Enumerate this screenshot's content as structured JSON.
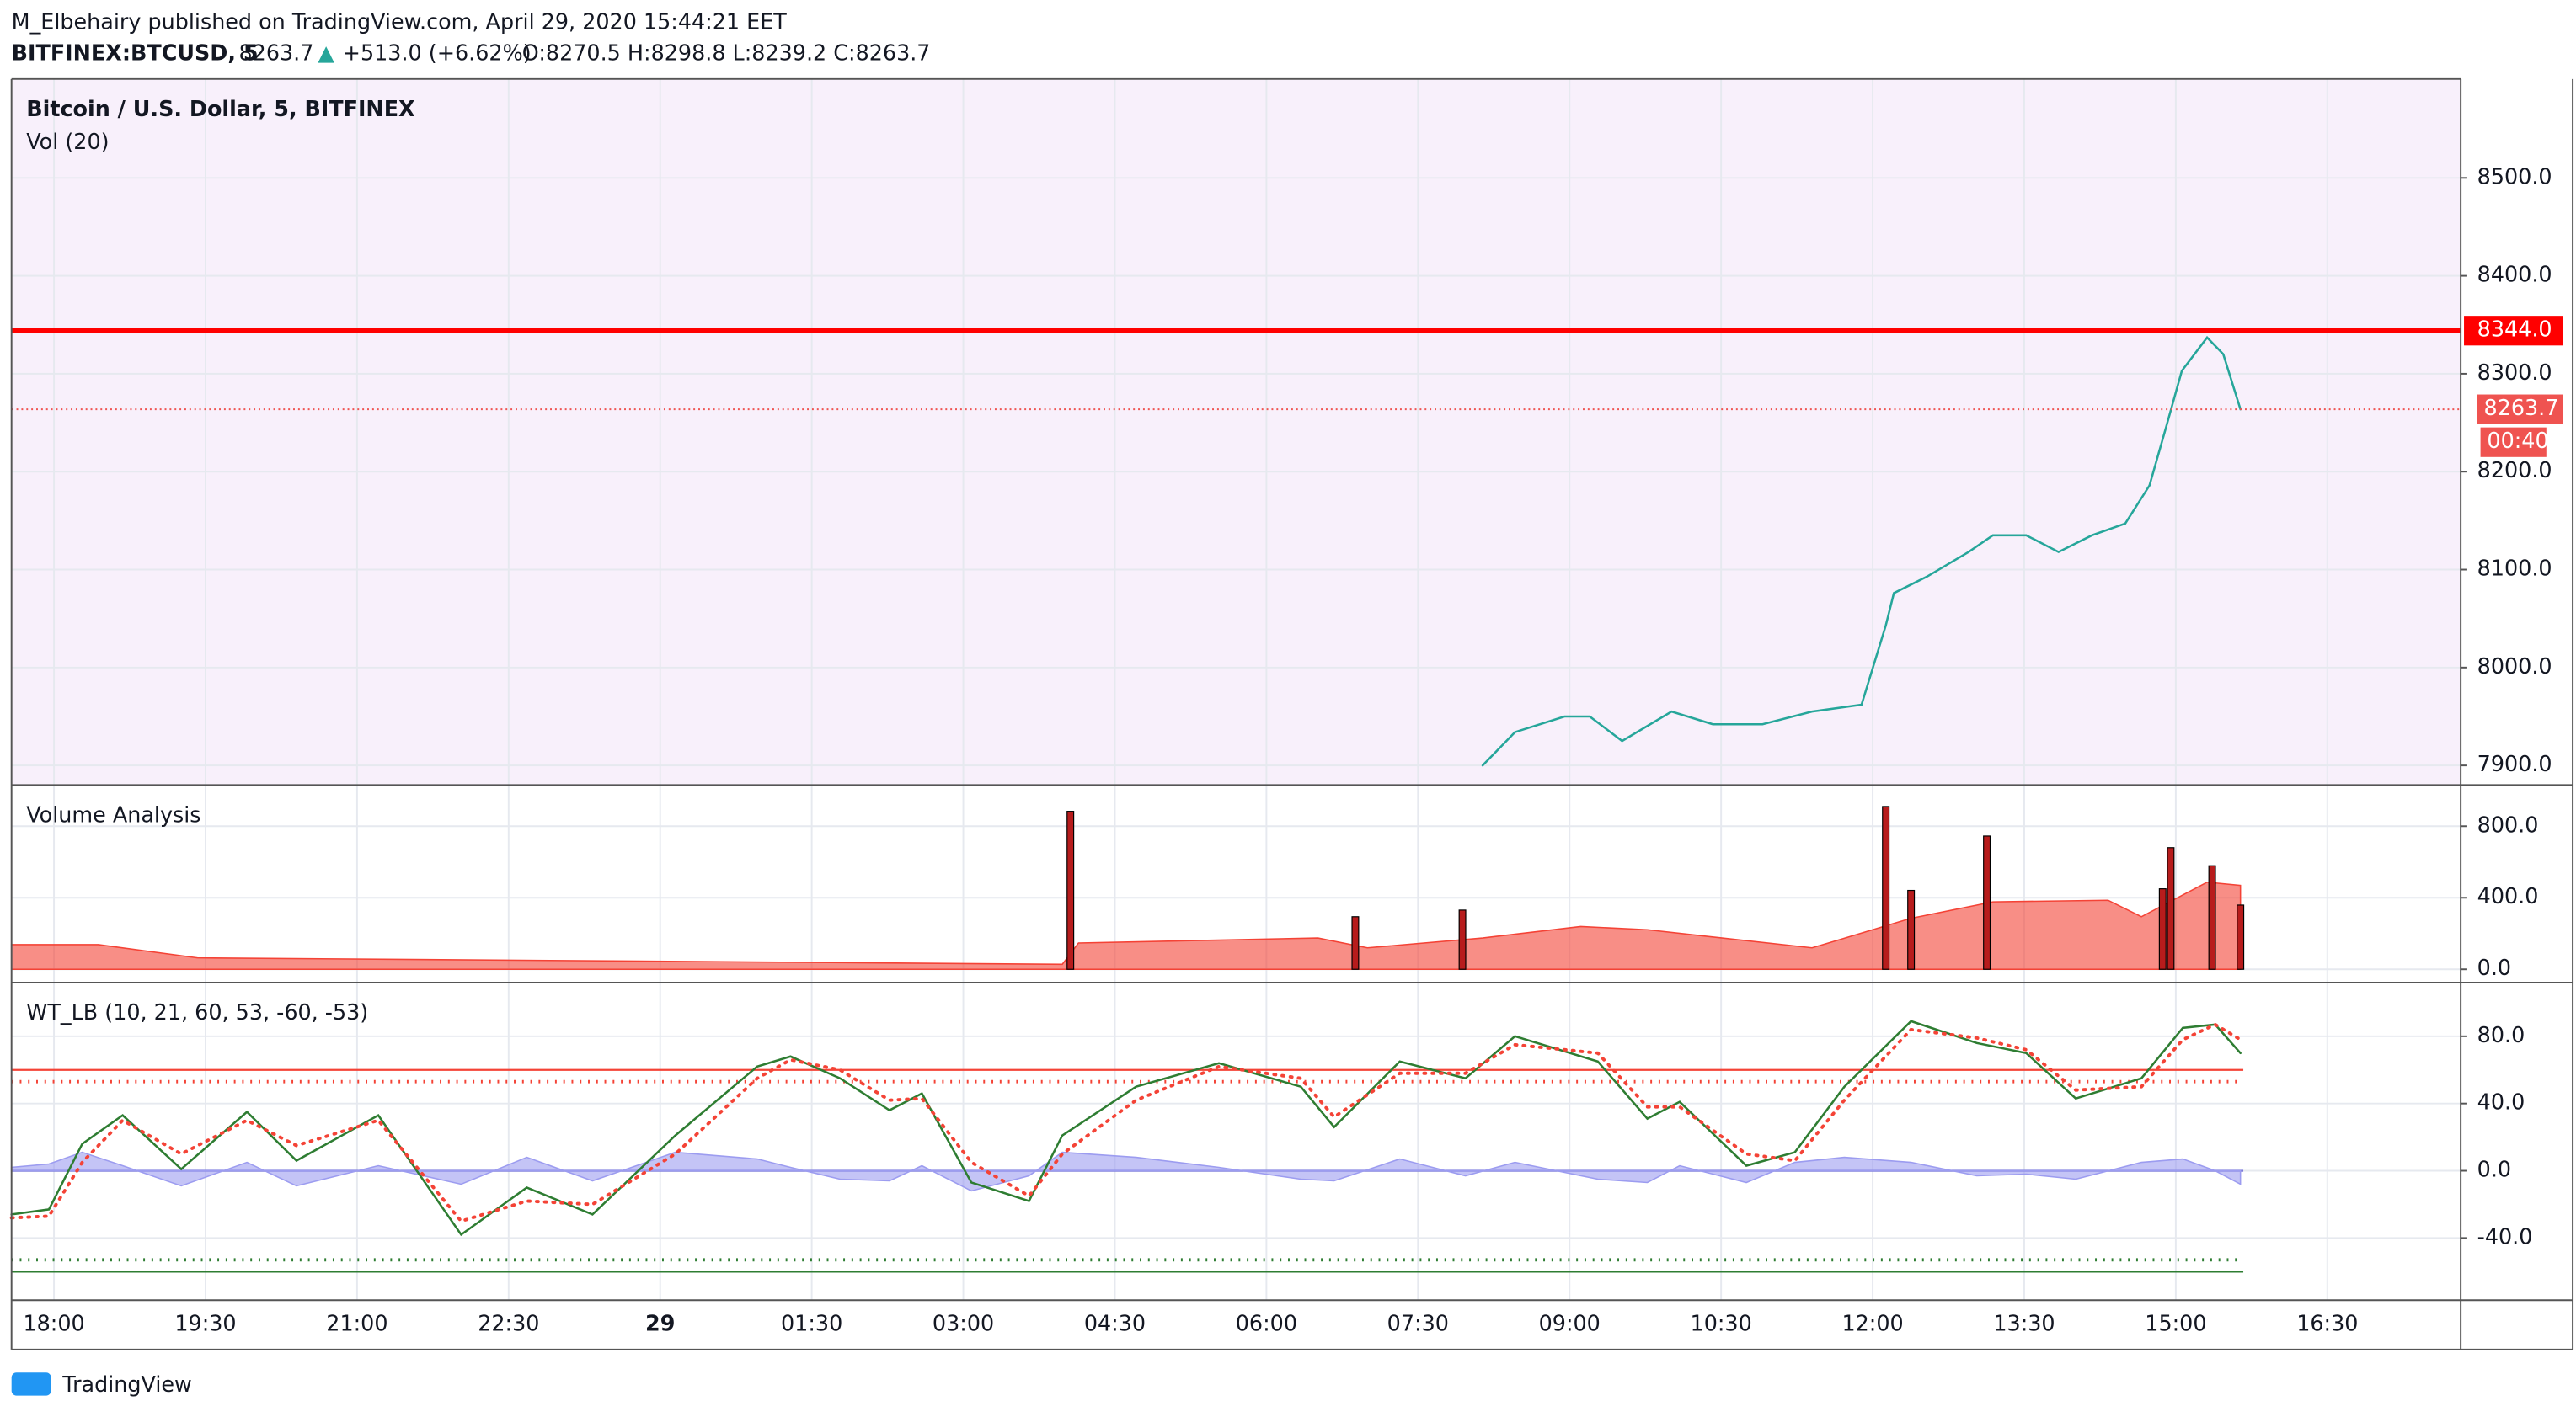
{
  "header": {
    "line1": "M_Elbehairy published on TradingView.com, April 29, 2020 15:44:21 EET",
    "symbol": "BITFINEX:BTCUSD, 5",
    "price": "8263.7",
    "arrow": "▲",
    "change": "+513.0 (+6.62%)",
    "ohlc": "O:8270.5 H:8298.8 L:8239.2 C:8263.7"
  },
  "footer": {
    "logo": "TradingView"
  },
  "chart_data": [
    {
      "type": "line",
      "title": "Bitcoin / U.S. Dollar, 5, BITFINEX",
      "subtitle": "Vol (20)",
      "color": "#26a69a",
      "x": [
        14.14,
        14.46,
        14.95,
        15.2,
        15.52,
        16.01,
        16.42,
        16.91,
        17.4,
        17.89,
        18.13,
        18.21,
        18.54,
        18.95,
        19.19,
        19.52,
        19.84,
        20.17,
        20.5,
        20.74,
        20.9,
        21.06,
        21.31,
        21.47,
        21.64
      ],
      "series": [
        {
          "color": "#26a69a",
          "values": [
            7900,
            7934,
            7950,
            7950,
            7925,
            7955,
            7942,
            7942,
            7955,
            7962,
            8043,
            8076,
            8093,
            8118,
            8135,
            8135,
            8118,
            8135,
            8147,
            8186,
            8244,
            8303,
            8337,
            8320,
            8263.7
          ]
        }
      ],
      "xlim": [
        -0.42,
        23.82
      ],
      "ylim": [
        7880,
        8601
      ],
      "yticks": [
        {
          "value": 7900,
          "label": "7900.0"
        },
        {
          "value": 8000,
          "label": "8000.0"
        },
        {
          "value": 8100,
          "label": "8100.0"
        },
        {
          "value": 8200,
          "label": "8200.0"
        },
        {
          "value": 8300,
          "label": "8300.0"
        },
        {
          "value": 8400,
          "label": "8400.0"
        },
        {
          "value": 8500,
          "label": "8500.0"
        }
      ],
      "hline": {
        "value": 8344.0,
        "label": "8344.0",
        "color": "#ff0000"
      },
      "last": {
        "value": 8263.7,
        "countdown": "00:40",
        "color": "#ef5350"
      },
      "background": "#f8f0fb",
      "grid": true
    },
    {
      "type": "bar",
      "title": "Volume Analysis",
      "series": [
        {
          "kind": "area",
          "color": "#f44336",
          "x": [
            -0.42,
            0.44,
            1.42,
            9.98,
            10.14,
            12.51,
            13.0,
            14.14,
            15.11,
            15.77,
            17.4,
            18.38,
            19.19,
            20.33,
            20.66,
            21.31,
            21.64
          ],
          "values": [
            138,
            138,
            64,
            28,
            147,
            175,
            120,
            175,
            239,
            221,
            120,
            285,
            377,
            386,
            294,
            487,
            469
          ]
        },
        {
          "kind": "bar",
          "color": "#b71c1c",
          "x": [
            10.06,
            12.88,
            13.94,
            18.13,
            18.38,
            19.13,
            20.87,
            20.95,
            21.36,
            21.64
          ],
          "values": [
            883,
            294,
            331,
            910,
            441,
            745,
            450,
            680,
            579,
            359
          ]
        }
      ],
      "xlim": [
        -0.42,
        23.82
      ],
      "ylim": [
        -74,
        1030
      ],
      "yticks": [
        {
          "value": 0,
          "label": "0.0"
        },
        {
          "value": 400,
          "label": "400.0"
        },
        {
          "value": 800,
          "label": "800.0"
        }
      ],
      "grid": true
    },
    {
      "type": "line",
      "title": "WT_LB (10, 21, 60, 53, -60, -53)",
      "x": [
        -0.42,
        -0.05,
        0.28,
        0.68,
        1.26,
        1.91,
        2.4,
        3.21,
        4.03,
        4.68,
        5.33,
        6.15,
        6.96,
        7.29,
        7.78,
        8.27,
        8.59,
        9.08,
        9.65,
        9.98,
        10.71,
        11.53,
        12.34,
        12.67,
        13.32,
        13.97,
        14.46,
        15.28,
        15.77,
        16.09,
        16.75,
        17.23,
        17.72,
        18.38,
        19.03,
        19.52,
        20.01,
        20.66,
        21.07,
        21.39,
        21.64
      ],
      "series": [
        {
          "kind": "area",
          "color": "#9c9cf0",
          "values": [
            2,
            4,
            11,
            3,
            -9,
            5,
            -9,
            3,
            -8,
            8,
            -6,
            11,
            7,
            2,
            -5,
            -6,
            3,
            -12,
            -3,
            11,
            8,
            2,
            -5,
            -6,
            7,
            -3,
            5,
            -5,
            -7,
            3,
            -7,
            5,
            8,
            5,
            -3,
            -2,
            -5,
            5,
            7,
            0,
            -8
          ]
        },
        {
          "kind": "line",
          "color": "#2e7d32",
          "values": [
            -26,
            -23,
            16,
            33,
            1,
            35,
            6,
            33,
            -38,
            -10,
            -26,
            21,
            62,
            68,
            55,
            36,
            46,
            -7,
            -18,
            21,
            50,
            64,
            50,
            26,
            65,
            55,
            80,
            65,
            31,
            41,
            3,
            11,
            50,
            89,
            76,
            70,
            43,
            55,
            85,
            87,
            70
          ]
        },
        {
          "kind": "dotted",
          "color": "#f44336",
          "values": [
            -28,
            -27,
            5,
            30,
            10,
            30,
            15,
            30,
            -30,
            -18,
            -20,
            10,
            55,
            66,
            60,
            42,
            43,
            5,
            -15,
            10,
            42,
            62,
            55,
            32,
            58,
            58,
            75,
            70,
            38,
            38,
            10,
            6,
            42,
            84,
            79,
            72,
            48,
            50,
            78,
            87,
            78
          ]
        }
      ],
      "levels": [
        {
          "value": 60,
          "color": "#f44336",
          "style": "solid"
        },
        {
          "value": 53,
          "color": "#f44336",
          "style": "dotted"
        },
        {
          "value": -60,
          "color": "#2e7d32",
          "style": "solid"
        },
        {
          "value": -53,
          "color": "#2e7d32",
          "style": "dotted"
        },
        {
          "value": 0,
          "color": "#7b7bd6",
          "style": "solid"
        }
      ],
      "xlim": [
        -0.42,
        23.82
      ],
      "ylim": [
        -77,
        112
      ],
      "yticks": [
        {
          "value": -40,
          "label": "-40.0"
        },
        {
          "value": 0,
          "label": "0.0"
        },
        {
          "value": 40,
          "label": "40.0"
        },
        {
          "value": 80,
          "label": "80.0"
        }
      ],
      "xticks": [
        {
          "value": 0,
          "label": "18:00"
        },
        {
          "value": 1.5,
          "label": "19:30"
        },
        {
          "value": 3,
          "label": "21:00"
        },
        {
          "value": 4.5,
          "label": "22:30"
        },
        {
          "value": 6,
          "label": "29"
        },
        {
          "value": 7.5,
          "label": "01:30"
        },
        {
          "value": 9,
          "label": "03:00"
        },
        {
          "value": 10.5,
          "label": "04:30"
        },
        {
          "value": 12,
          "label": "06:00"
        },
        {
          "value": 13.5,
          "label": "07:30"
        },
        {
          "value": 15,
          "label": "09:00"
        },
        {
          "value": 16.5,
          "label": "10:30"
        },
        {
          "value": 18,
          "label": "12:00"
        },
        {
          "value": 19.5,
          "label": "13:30"
        },
        {
          "value": 21,
          "label": "15:00"
        },
        {
          "value": 22.5,
          "label": "16:30"
        }
      ],
      "grid": true
    }
  ]
}
